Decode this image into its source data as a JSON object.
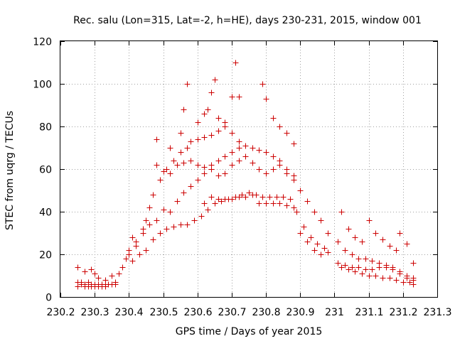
{
  "chart_data": {
    "type": "scatter",
    "title": "Rec. salu (Lon=315, Lat=-2, h=HE), days 230-231, 2015, window 001",
    "xlabel": "GPS time / Days of year 2015",
    "ylabel": "STEC from uqrg / TECUs",
    "xlim": [
      230.2,
      231.3
    ],
    "ylim": [
      0,
      120
    ],
    "x_ticks": [
      230.2,
      230.3,
      230.4,
      230.5,
      230.6,
      230.7,
      230.8,
      230.9,
      231,
      231.1,
      231.2,
      231.3
    ],
    "x_tick_labels": [
      "230.2",
      "230.3",
      "230.4",
      "230.5",
      "230.6",
      "230.7",
      "230.8",
      "230.9",
      "231",
      "231.1",
      "231.2",
      "231.3"
    ],
    "y_ticks": [
      0,
      20,
      40,
      60,
      80,
      100,
      120
    ],
    "y_tick_labels": [
      "0",
      "20",
      "40",
      "60",
      "80",
      "100",
      "120"
    ],
    "grid": true,
    "marker": "+",
    "color": "#cc0000",
    "series": [
      {
        "points": [
          [
            230.25,
            14
          ],
          [
            230.27,
            12
          ],
          [
            230.29,
            13
          ],
          [
            230.3,
            11
          ],
          [
            230.31,
            9
          ],
          [
            230.33,
            8
          ],
          [
            230.35,
            10
          ],
          [
            230.37,
            11
          ],
          [
            230.25,
            7
          ],
          [
            230.26,
            7
          ],
          [
            230.27,
            6
          ],
          [
            230.28,
            7
          ],
          [
            230.29,
            6
          ],
          [
            230.3,
            6
          ],
          [
            230.31,
            6
          ],
          [
            230.32,
            5
          ],
          [
            230.33,
            5
          ],
          [
            230.34,
            6
          ],
          [
            230.35,
            6
          ],
          [
            230.36,
            7
          ],
          [
            230.25,
            5
          ],
          [
            230.26,
            6
          ],
          [
            230.27,
            5
          ],
          [
            230.28,
            5
          ],
          [
            230.29,
            5
          ],
          [
            230.3,
            5
          ],
          [
            230.31,
            5
          ],
          [
            230.32,
            6
          ],
          [
            230.33,
            6
          ],
          [
            230.34,
            6
          ],
          [
            230.35,
            6
          ],
          [
            230.36,
            6
          ],
          [
            230.38,
            14
          ],
          [
            230.39,
            18
          ],
          [
            230.4,
            22
          ],
          [
            230.41,
            28
          ],
          [
            230.42,
            26
          ],
          [
            230.44,
            32
          ],
          [
            230.45,
            36
          ],
          [
            230.46,
            42
          ],
          [
            230.47,
            48
          ],
          [
            230.48,
            62
          ],
          [
            230.49,
            55
          ],
          [
            230.5,
            59
          ],
          [
            230.51,
            60
          ],
          [
            230.53,
            64
          ],
          [
            230.55,
            68
          ],
          [
            230.57,
            70
          ],
          [
            230.58,
            73
          ],
          [
            230.6,
            74
          ],
          [
            230.62,
            75
          ],
          [
            230.64,
            76
          ],
          [
            230.66,
            78
          ],
          [
            230.68,
            80
          ],
          [
            230.7,
            77
          ],
          [
            230.72,
            73
          ],
          [
            230.4,
            20
          ],
          [
            230.42,
            24
          ],
          [
            230.44,
            30
          ],
          [
            230.46,
            34
          ],
          [
            230.48,
            36
          ],
          [
            230.5,
            41
          ],
          [
            230.52,
            40
          ],
          [
            230.54,
            45
          ],
          [
            230.56,
            49
          ],
          [
            230.58,
            52
          ],
          [
            230.6,
            55
          ],
          [
            230.62,
            58
          ],
          [
            230.64,
            62
          ],
          [
            230.66,
            64
          ],
          [
            230.68,
            66
          ],
          [
            230.7,
            68
          ],
          [
            230.72,
            70
          ],
          [
            230.74,
            71
          ],
          [
            230.76,
            70
          ],
          [
            230.78,
            69
          ],
          [
            230.8,
            68
          ],
          [
            230.82,
            66
          ],
          [
            230.84,
            64
          ],
          [
            230.86,
            60
          ],
          [
            230.88,
            55
          ],
          [
            230.9,
            50
          ],
          [
            230.92,
            45
          ],
          [
            230.94,
            40
          ],
          [
            230.96,
            36
          ],
          [
            230.98,
            30
          ],
          [
            230.41,
            17
          ],
          [
            230.43,
            20
          ],
          [
            230.45,
            22
          ],
          [
            230.47,
            27
          ],
          [
            230.49,
            30
          ],
          [
            230.51,
            32
          ],
          [
            230.53,
            33
          ],
          [
            230.55,
            34
          ],
          [
            230.57,
            34
          ],
          [
            230.59,
            36
          ],
          [
            230.61,
            38
          ],
          [
            230.63,
            41
          ],
          [
            230.65,
            44
          ],
          [
            230.67,
            45
          ],
          [
            230.69,
            46
          ],
          [
            230.71,
            47
          ],
          [
            230.73,
            48
          ],
          [
            230.75,
            49
          ],
          [
            230.77,
            48
          ],
          [
            230.79,
            47
          ],
          [
            230.81,
            47
          ],
          [
            230.83,
            47
          ],
          [
            230.85,
            47
          ],
          [
            230.87,
            46
          ],
          [
            230.89,
            40
          ],
          [
            230.91,
            33
          ],
          [
            230.93,
            28
          ],
          [
            230.95,
            25
          ],
          [
            230.97,
            23
          ],
          [
            230.62,
            44
          ],
          [
            230.64,
            47
          ],
          [
            230.66,
            46
          ],
          [
            230.68,
            46
          ],
          [
            230.7,
            46
          ],
          [
            230.72,
            47
          ],
          [
            230.74,
            47
          ],
          [
            230.76,
            48
          ],
          [
            230.78,
            44
          ],
          [
            230.8,
            44
          ],
          [
            230.82,
            44
          ],
          [
            230.84,
            44
          ],
          [
            230.86,
            43
          ],
          [
            230.88,
            42
          ],
          [
            230.9,
            30
          ],
          [
            230.92,
            26
          ],
          [
            230.94,
            22
          ],
          [
            230.96,
            20
          ],
          [
            230.98,
            21
          ],
          [
            230.48,
            74
          ],
          [
            230.52,
            70
          ],
          [
            230.55,
            77
          ],
          [
            230.56,
            88
          ],
          [
            230.57,
            100
          ],
          [
            230.6,
            82
          ],
          [
            230.62,
            86
          ],
          [
            230.63,
            88
          ],
          [
            230.64,
            96
          ],
          [
            230.65,
            102
          ],
          [
            230.66,
            84
          ],
          [
            230.68,
            82
          ],
          [
            230.7,
            94
          ],
          [
            230.71,
            110
          ],
          [
            230.72,
            94
          ],
          [
            230.79,
            100
          ],
          [
            230.8,
            93
          ],
          [
            230.82,
            84
          ],
          [
            230.84,
            80
          ],
          [
            230.86,
            77
          ],
          [
            230.88,
            72
          ],
          [
            230.52,
            58
          ],
          [
            230.54,
            62
          ],
          [
            230.56,
            63
          ],
          [
            230.58,
            64
          ],
          [
            230.6,
            62
          ],
          [
            230.62,
            61
          ],
          [
            230.64,
            60
          ],
          [
            230.66,
            57
          ],
          [
            230.68,
            58
          ],
          [
            230.7,
            62
          ],
          [
            230.72,
            64
          ],
          [
            230.74,
            66
          ],
          [
            230.76,
            63
          ],
          [
            230.78,
            60
          ],
          [
            230.8,
            58
          ],
          [
            230.82,
            60
          ],
          [
            230.84,
            62
          ],
          [
            230.86,
            58
          ],
          [
            230.88,
            57
          ],
          [
            231.02,
            40
          ],
          [
            231.04,
            32
          ],
          [
            231.06,
            28
          ],
          [
            231.08,
            26
          ],
          [
            231.1,
            36
          ],
          [
            231.12,
            30
          ],
          [
            231.14,
            27
          ],
          [
            231.16,
            24
          ],
          [
            231.18,
            22
          ],
          [
            231.19,
            30
          ],
          [
            231.21,
            25
          ],
          [
            231.23,
            16
          ],
          [
            231.01,
            26
          ],
          [
            231.03,
            22
          ],
          [
            231.05,
            20
          ],
          [
            231.07,
            18
          ],
          [
            231.09,
            18
          ],
          [
            231.11,
            17
          ],
          [
            231.13,
            16
          ],
          [
            231.15,
            15
          ],
          [
            231.17,
            14
          ],
          [
            231.19,
            12
          ],
          [
            231.21,
            10
          ],
          [
            231.23,
            9
          ],
          [
            231.01,
            16
          ],
          [
            231.03,
            15
          ],
          [
            231.05,
            14
          ],
          [
            231.07,
            14
          ],
          [
            231.09,
            13
          ],
          [
            231.11,
            13
          ],
          [
            231.13,
            14
          ],
          [
            231.15,
            14
          ],
          [
            231.17,
            13
          ],
          [
            231.19,
            11
          ],
          [
            231.21,
            9
          ],
          [
            231.23,
            8
          ],
          [
            231.02,
            14
          ],
          [
            231.04,
            13
          ],
          [
            231.06,
            12
          ],
          [
            231.08,
            11
          ],
          [
            231.1,
            10
          ],
          [
            231.12,
            10
          ],
          [
            231.14,
            9
          ],
          [
            231.16,
            9
          ],
          [
            231.18,
            8
          ],
          [
            231.2,
            7
          ],
          [
            231.22,
            7
          ],
          [
            231.23,
            6
          ]
        ]
      }
    ]
  }
}
